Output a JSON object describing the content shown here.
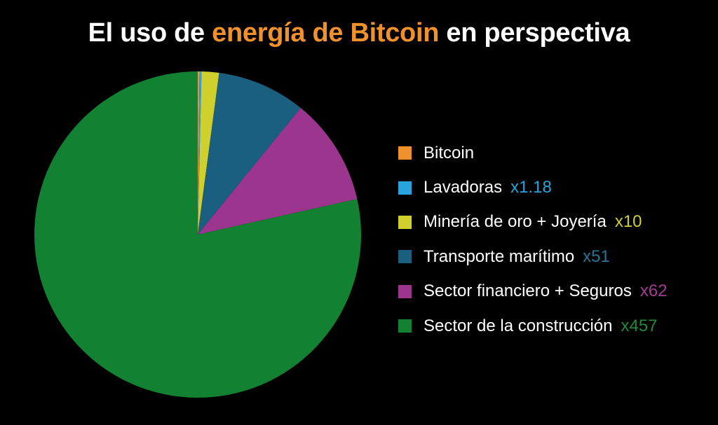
{
  "title": {
    "prefix": "El uso de ",
    "highlight": "energía de Bitcoin",
    "suffix": " en perspectiva",
    "highlight_color": "#f0922c"
  },
  "chart_data": {
    "type": "pie",
    "title": "El uso de energía de Bitcoin en perspectiva",
    "start_angle_deg": 0,
    "direction": "clockwise",
    "legend_position": "right",
    "slices": [
      {
        "label": "Bitcoin",
        "multiplier": "",
        "value": 1,
        "color": "#f0922c",
        "multiplier_color": "#f0922c"
      },
      {
        "label": "Lavadoras",
        "multiplier": "x1.18",
        "value": 1.18,
        "color": "#29a3dc",
        "multiplier_color": "#29a3dc"
      },
      {
        "label": "Minería de oro + Joyería",
        "multiplier": "x10",
        "value": 10,
        "color": "#cfcf2e",
        "multiplier_color": "#cfcf2e"
      },
      {
        "label": "Transporte marítimo",
        "multiplier": "x51",
        "value": 51,
        "color": "#1a5e80",
        "multiplier_color": "#2a7396"
      },
      {
        "label": "Sector financiero + Seguros",
        "multiplier": "x62",
        "value": 62,
        "color": "#9b358e",
        "multiplier_color": "#a23d95"
      },
      {
        "label": "Sector de la construcción",
        "multiplier": "x457",
        "value": 457,
        "color": "#128232",
        "multiplier_color": "#1f8a3a"
      }
    ]
  }
}
